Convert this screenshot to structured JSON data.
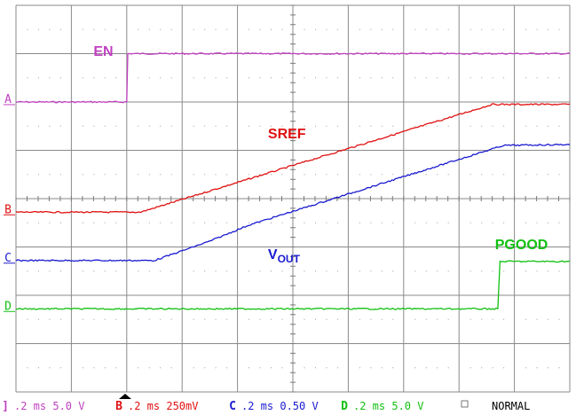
{
  "chart_data": {
    "type": "line",
    "title": "",
    "xlabel": "",
    "ylabel": "",
    "grid": true,
    "x_divisions": 10,
    "y_divisions": 8,
    "xlim": [
      0,
      10
    ],
    "ylim": [
      0,
      8
    ],
    "series": [
      {
        "channel": "A",
        "name": "EN",
        "color": "#c040c0",
        "label_pos": [
          1.4,
          6.95
        ],
        "points": [
          [
            0,
            6.0
          ],
          [
            2.0,
            6.0
          ],
          [
            2.02,
            7.0
          ],
          [
            10,
            7.0
          ]
        ]
      },
      {
        "channel": "B",
        "name": "SREF",
        "color": "#e01010",
        "label_pos": [
          4.55,
          5.25
        ],
        "points": [
          [
            0,
            3.72
          ],
          [
            2.25,
            3.72
          ],
          [
            8.6,
            5.95
          ],
          [
            10,
            5.95
          ]
        ]
      },
      {
        "channel": "C",
        "name": "V",
        "subscript": "OUT",
        "color": "#1a1ad0",
        "label_pos": [
          4.55,
          2.75
        ],
        "points": [
          [
            0,
            2.72
          ],
          [
            2.5,
            2.72
          ],
          [
            3.5,
            3.12
          ],
          [
            4.2,
            3.45
          ],
          [
            8.8,
            5.1
          ],
          [
            10,
            5.12
          ]
        ]
      },
      {
        "channel": "D",
        "name": "PGOOD",
        "color": "#10c010",
        "label_pos": [
          8.65,
          2.95
        ],
        "points": [
          [
            0,
            1.72
          ],
          [
            8.7,
            1.72
          ],
          [
            8.74,
            2.7
          ],
          [
            10,
            2.7
          ]
        ]
      }
    ],
    "markers": [
      {
        "label": "A",
        "level": 6.0,
        "color": "#c040c0"
      },
      {
        "label": "B",
        "level": 3.72,
        "color": "#e01010"
      },
      {
        "label": "C",
        "level": 2.72,
        "color": "#1a1ad0"
      },
      {
        "label": "D",
        "level": 1.72,
        "color": "#10c010"
      }
    ],
    "status_bar": {
      "channels": [
        {
          "id": "A",
          "id_glyph": "]",
          "text": ".2 ms 5.0 V",
          "color": "#c040c0"
        },
        {
          "id": "B",
          "id_glyph": "B",
          "text": ".2 ms 250mV",
          "color": "#e01010"
        },
        {
          "id": "C",
          "id_glyph": "C",
          "text": ".2 ms 0.50 V",
          "color": "#1a1ad0"
        },
        {
          "id": "D",
          "id_glyph": "D",
          "text": ".2 ms 5.0 V",
          "color": "#10c010"
        }
      ],
      "mode": "NORMAL"
    }
  }
}
